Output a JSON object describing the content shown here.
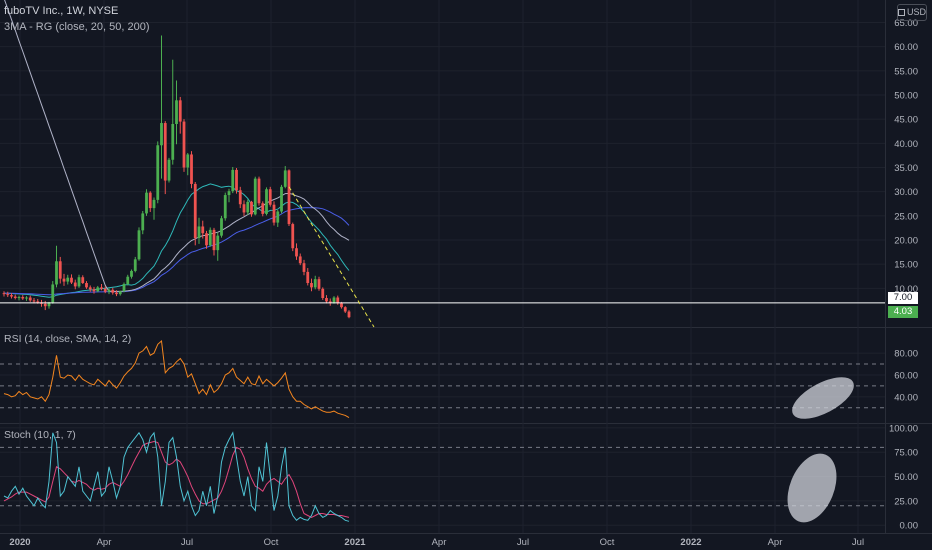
{
  "header": {
    "symbol": "fuboTV Inc., 1W, NYSE",
    "indicator": "3MA - RG (close, 20, 50, 200)",
    "currency": "USD"
  },
  "panes": {
    "rsi_label": "RSI (14, close, SMA, 14, 2)",
    "stoch_label": "Stoch (10, 1, 7)"
  },
  "price_tags": {
    "line_value": "7.00",
    "last_price": "4.03"
  },
  "colors": {
    "background": "#131722",
    "grid": "#1e222d",
    "up": "#4caf50",
    "down": "#ef5350",
    "ma20": "#2eb8b8",
    "ma50": "#4a5ee8",
    "ma200": "#b0b3c8",
    "rsi": "#f4861f",
    "stoch_k": "#4fc3d4",
    "stoch_d": "#e0457b",
    "trend": "#e9e44a",
    "hline": "#ffffff"
  },
  "chart_data": [
    {
      "type": "candlestick",
      "title": "fuboTV Inc., 1W, NYSE",
      "x_ticks": [
        "2020",
        "Apr",
        "Jul",
        "Oct",
        "2021",
        "Apr",
        "Jul",
        "Oct",
        "2022",
        "Apr",
        "Jul"
      ],
      "y_ticks": [
        "65.00",
        "60.00",
        "55.00",
        "50.00",
        "45.00",
        "40.00",
        "35.00",
        "30.00",
        "25.00",
        "20.00",
        "15.00",
        "10.00"
      ],
      "ylim": [
        2,
        68
      ],
      "weeks": 93,
      "candles": [
        [
          9.0,
          9.4,
          8.3,
          8.8
        ],
        [
          8.8,
          9.3,
          8.2,
          8.6
        ],
        [
          8.6,
          9.0,
          7.9,
          8.3
        ],
        [
          8.3,
          8.7,
          7.7,
          8.0
        ],
        [
          8.0,
          8.5,
          7.5,
          8.2
        ],
        [
          8.2,
          8.6,
          7.6,
          7.9
        ],
        [
          7.9,
          8.4,
          7.4,
          8.1
        ],
        [
          8.1,
          8.5,
          7.2,
          7.5
        ],
        [
          7.5,
          8.0,
          6.9,
          7.3
        ],
        [
          7.3,
          7.8,
          6.8,
          7.1
        ],
        [
          7.1,
          7.6,
          6.2,
          6.8
        ],
        [
          6.8,
          7.4,
          5.5,
          6.3
        ],
        [
          6.3,
          7.2,
          5.8,
          7.1
        ],
        [
          7.1,
          11.5,
          6.8,
          10.8
        ],
        [
          10.8,
          18.8,
          10.2,
          15.6
        ],
        [
          15.6,
          16.5,
          11.0,
          12.0
        ],
        [
          12.0,
          13.0,
          10.5,
          11.4
        ],
        [
          11.4,
          12.8,
          10.8,
          12.2
        ],
        [
          12.2,
          12.9,
          10.9,
          11.2
        ],
        [
          11.2,
          11.8,
          9.8,
          10.4
        ],
        [
          10.4,
          12.8,
          10.1,
          12.3
        ],
        [
          12.3,
          12.7,
          10.9,
          11.1
        ],
        [
          11.1,
          11.5,
          9.9,
          10.2
        ],
        [
          10.2,
          10.6,
          9.3,
          9.8
        ],
        [
          9.8,
          10.3,
          8.9,
          9.4
        ],
        [
          9.4,
          10.5,
          9.2,
          10.2
        ],
        [
          10.2,
          10.9,
          9.6,
          9.9
        ],
        [
          9.9,
          10.4,
          9.0,
          9.3
        ],
        [
          9.3,
          10.0,
          8.8,
          9.7
        ],
        [
          9.7,
          10.1,
          8.7,
          9.1
        ],
        [
          9.1,
          9.6,
          8.4,
          8.8
        ],
        [
          8.8,
          9.5,
          8.5,
          9.4
        ],
        [
          9.4,
          11.2,
          9.2,
          10.9
        ],
        [
          10.9,
          12.8,
          10.6,
          12.4
        ],
        [
          12.4,
          13.9,
          12.0,
          13.6
        ],
        [
          13.6,
          16.5,
          13.3,
          16.0
        ],
        [
          16.0,
          22.6,
          15.7,
          22.0
        ],
        [
          22.0,
          26.0,
          21.2,
          25.5
        ],
        [
          25.5,
          30.5,
          25.0,
          29.8
        ],
        [
          29.8,
          30.1,
          25.8,
          26.6
        ],
        [
          26.6,
          28.8,
          24.2,
          28.3
        ],
        [
          28.3,
          40.4,
          27.6,
          39.6
        ],
        [
          39.6,
          62.3,
          32.7,
          44.2
        ],
        [
          44.2,
          44.6,
          29.5,
          32.3
        ],
        [
          32.3,
          37.0,
          31.9,
          36.6
        ],
        [
          36.6,
          57.3,
          35.6,
          44.0
        ],
        [
          44.0,
          53.0,
          39.8,
          48.9
        ],
        [
          48.9,
          49.6,
          42.0,
          44.5
        ],
        [
          44.5,
          45.0,
          34.1,
          35.0
        ],
        [
          35.0,
          38.0,
          33.4,
          37.7
        ],
        [
          37.7,
          38.4,
          30.7,
          31.6
        ],
        [
          31.6,
          32.0,
          18.9,
          20.4
        ],
        [
          20.4,
          24.6,
          19.2,
          22.8
        ],
        [
          22.8,
          24.0,
          20.3,
          21.4
        ],
        [
          21.4,
          21.9,
          18.2,
          18.9
        ],
        [
          18.9,
          22.6,
          18.6,
          22.1
        ],
        [
          22.1,
          22.5,
          16.8,
          17.9
        ],
        [
          17.9,
          21.6,
          15.7,
          20.9
        ],
        [
          20.9,
          25.0,
          20.5,
          24.5
        ],
        [
          24.5,
          29.8,
          24.0,
          29.3
        ],
        [
          29.3,
          30.6,
          27.8,
          30.1
        ],
        [
          30.1,
          35.1,
          29.7,
          34.5
        ],
        [
          34.5,
          34.9,
          29.6,
          30.3
        ],
        [
          30.3,
          31.0,
          26.6,
          27.4
        ],
        [
          27.4,
          28.2,
          25.0,
          25.7
        ],
        [
          25.7,
          28.4,
          25.2,
          27.9
        ],
        [
          27.9,
          28.1,
          24.8,
          25.3
        ],
        [
          25.3,
          33.1,
          25.1,
          32.7
        ],
        [
          32.7,
          33.1,
          27.1,
          27.6
        ],
        [
          27.6,
          28.0,
          24.9,
          25.4
        ],
        [
          25.4,
          30.9,
          25.1,
          30.5
        ],
        [
          30.5,
          31.0,
          26.9,
          27.3
        ],
        [
          27.3,
          28.0,
          23.0,
          23.6
        ],
        [
          23.6,
          26.2,
          22.7,
          25.9
        ],
        [
          25.9,
          31.4,
          25.5,
          31.0
        ],
        [
          31.0,
          35.3,
          30.7,
          34.4
        ],
        [
          34.4,
          34.6,
          22.9,
          23.3
        ],
        [
          23.3,
          23.6,
          17.7,
          18.3
        ],
        [
          18.3,
          19.3,
          15.9,
          16.6
        ],
        [
          16.6,
          17.2,
          14.8,
          15.2
        ],
        [
          15.2,
          15.9,
          12.7,
          13.4
        ],
        [
          13.4,
          14.2,
          10.6,
          11.1
        ],
        [
          11.1,
          12.0,
          9.4,
          10.2
        ],
        [
          10.2,
          12.6,
          9.8,
          11.9
        ],
        [
          11.9,
          12.4,
          9.5,
          9.9
        ],
        [
          9.9,
          10.2,
          7.6,
          8.0
        ],
        [
          8.0,
          8.6,
          6.9,
          7.3
        ],
        [
          7.3,
          7.9,
          6.4,
          7.0
        ],
        [
          7.0,
          8.4,
          6.8,
          8.1
        ],
        [
          8.1,
          8.5,
          6.6,
          6.9
        ],
        [
          6.9,
          7.2,
          5.8,
          6.1
        ],
        [
          6.1,
          6.3,
          4.9,
          5.2
        ],
        [
          5.2,
          5.5,
          3.8,
          4.03
        ]
      ]
    },
    {
      "type": "line",
      "title": "RSI (14, close, SMA, 14, 2)",
      "y_ticks": [
        "80.00",
        "60.00",
        "40.00"
      ],
      "ylim": [
        17,
        102
      ],
      "bands": [
        70,
        50,
        30
      ],
      "values": [
        43,
        42,
        40,
        41,
        45,
        42,
        44,
        40,
        39,
        38,
        40,
        36,
        42,
        58,
        78,
        58,
        57,
        60,
        59,
        55,
        60,
        56,
        54,
        52,
        51,
        56,
        53,
        50,
        55,
        51,
        48,
        53,
        59,
        63,
        66,
        71,
        80,
        82,
        86,
        78,
        80,
        88,
        91,
        62,
        66,
        68,
        72,
        75,
        70,
        58,
        61,
        52,
        43,
        47,
        42,
        51,
        44,
        47,
        52,
        60,
        62,
        66,
        58,
        55,
        52,
        58,
        52,
        51,
        59,
        52,
        56,
        53,
        50,
        53,
        57,
        62,
        47,
        40,
        36,
        36,
        33,
        31,
        29,
        31,
        29,
        27,
        26,
        26,
        27,
        25,
        24,
        23,
        21
      ]
    },
    {
      "type": "line",
      "title": "Stoch (10, 1, 7)",
      "y_ticks": [
        "100.00",
        "75.00",
        "50.00",
        "25.00",
        "0.00"
      ],
      "ylim": [
        -8,
        104
      ],
      "bands": [
        80,
        20
      ],
      "k": [
        30,
        28,
        35,
        40,
        32,
        38,
        30,
        25,
        20,
        28,
        22,
        18,
        45,
        95,
        85,
        30,
        35,
        50,
        45,
        40,
        60,
        35,
        30,
        25,
        40,
        55,
        30,
        35,
        60,
        45,
        28,
        40,
        70,
        80,
        85,
        90,
        95,
        88,
        75,
        90,
        95,
        70,
        20,
        45,
        85,
        90,
        70,
        40,
        25,
        35,
        20,
        10,
        15,
        35,
        20,
        40,
        12,
        30,
        65,
        80,
        88,
        95,
        70,
        45,
        30,
        50,
        20,
        15,
        60,
        45,
        85,
        50,
        15,
        30,
        60,
        80,
        20,
        10,
        5,
        8,
        6,
        5,
        10,
        20,
        12,
        8,
        10,
        15,
        12,
        10,
        8,
        5,
        4
      ],
      "d": [
        25,
        27,
        29,
        32,
        34,
        34,
        34,
        32,
        30,
        28,
        26,
        24,
        29,
        45,
        60,
        58,
        54,
        50,
        45,
        44,
        46,
        44,
        42,
        38,
        36,
        38,
        37,
        38,
        42,
        44,
        42,
        40,
        45,
        52,
        60,
        68,
        75,
        82,
        84,
        85,
        86,
        85,
        75,
        65,
        62,
        64,
        68,
        65,
        58,
        50,
        40,
        32,
        25,
        22,
        22,
        24,
        26,
        28,
        35,
        45,
        58,
        72,
        80,
        78,
        70,
        58,
        48,
        40,
        38,
        35,
        42,
        46,
        48,
        45,
        42,
        48,
        52,
        45,
        35,
        22,
        12,
        10,
        8,
        10,
        12,
        12,
        11,
        11,
        11,
        10,
        10,
        9,
        8
      ]
    }
  ]
}
